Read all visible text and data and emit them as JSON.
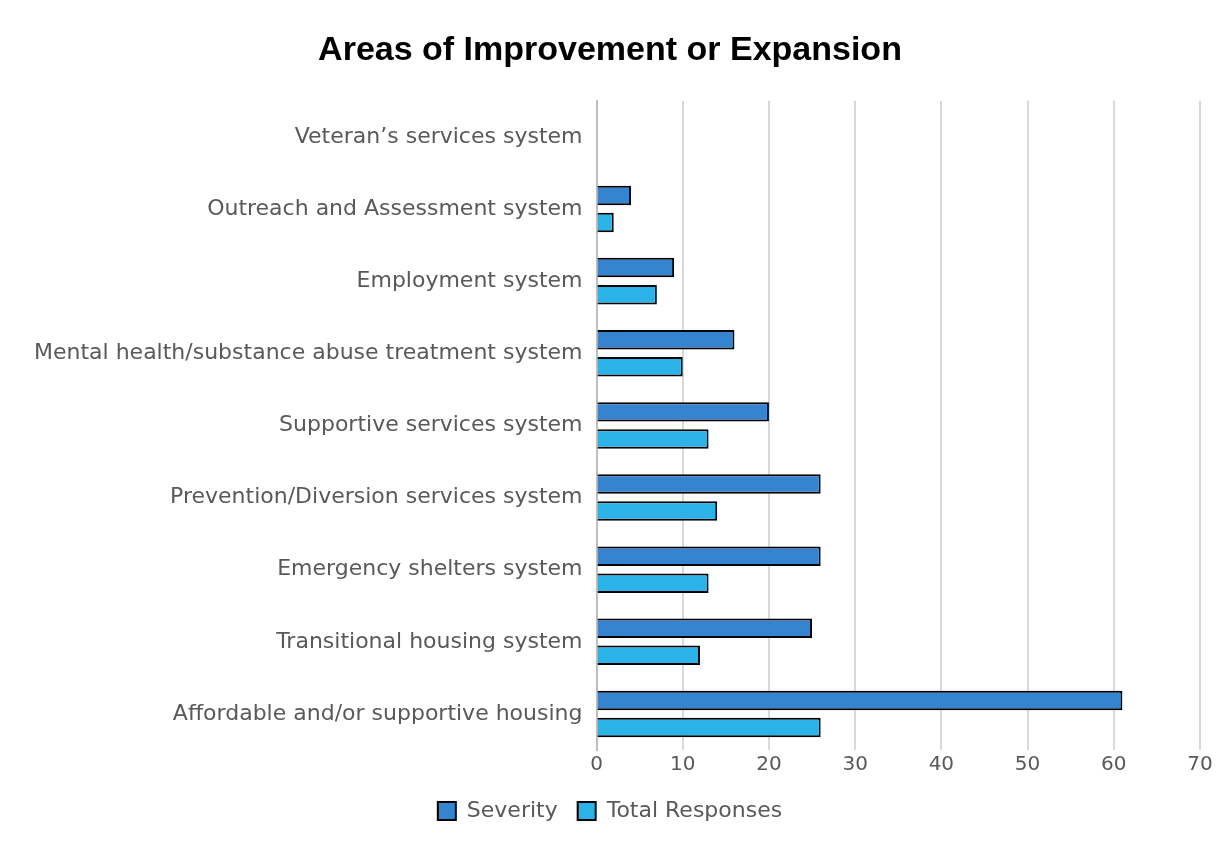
{
  "chart_data": {
    "type": "bar",
    "orientation": "horizontal",
    "title": "Areas of Improvement or Expansion",
    "categories": [
      "Veteran’s services system",
      "Outreach and Assessment system",
      "Employment system",
      "Mental health/substance abuse treatment system",
      "Supportive services system",
      "Prevention/Diversion services system",
      "Emergency shelters system",
      "Transitional housing system",
      "Affordable and/or supportive housing"
    ],
    "series": [
      {
        "name": "Severity",
        "color": "#3584d0",
        "values": [
          0,
          4,
          9,
          16,
          20,
          26,
          26,
          25,
          61
        ]
      },
      {
        "name": "Total Responses",
        "color": "#2bb3e8",
        "values": [
          0,
          2,
          7,
          10,
          13,
          14,
          13,
          12,
          26
        ]
      }
    ],
    "xlim": [
      0,
      70
    ],
    "xticks": [
      0,
      10,
      20,
      30,
      40,
      50,
      60,
      70
    ],
    "grid": "x",
    "legend": "bottom"
  }
}
